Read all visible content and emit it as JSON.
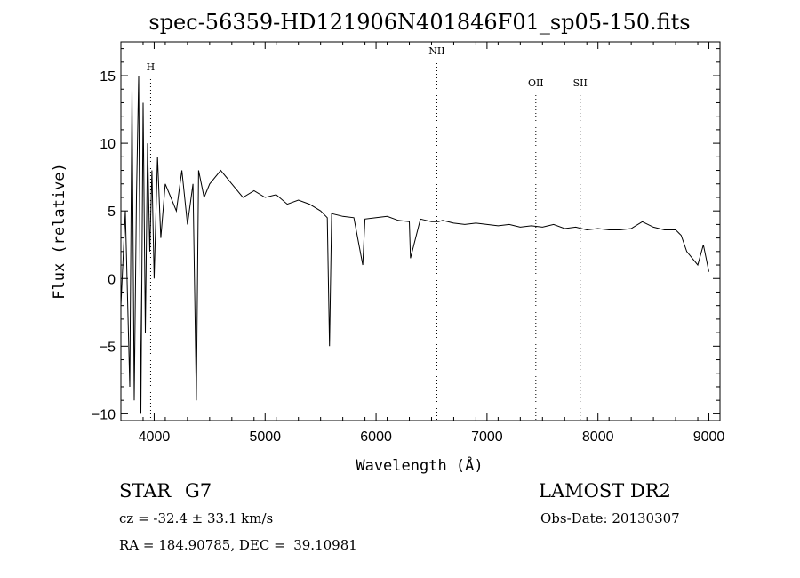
{
  "chart_data": {
    "type": "line",
    "title": "spec-56359-HD121906N401846F01_sp05-150.fits",
    "xlabel": "Wavelength (Å)",
    "ylabel": "Flux (relative)",
    "xlim": [
      3700,
      9100
    ],
    "ylim": [
      -10.5,
      17.5
    ],
    "xticks": [
      4000,
      5000,
      6000,
      7000,
      8000,
      9000
    ],
    "yticks": [
      -10,
      -5,
      0,
      5,
      10,
      15
    ],
    "grid": false,
    "line_color": "#000000",
    "series": [
      {
        "x": [
          3700,
          3740,
          3780,
          3800,
          3820,
          3840,
          3860,
          3880,
          3900,
          3920,
          3940,
          3960,
          3980,
          4000,
          4030,
          4060,
          4100,
          4150,
          4200,
          4250,
          4300,
          4350,
          4380,
          4400,
          4450,
          4500,
          4600,
          4700,
          4800,
          4900,
          5000,
          5100,
          5200,
          5300,
          5400,
          5500,
          5560,
          5580,
          5600,
          5700,
          5800,
          5880,
          5900,
          6000,
          6100,
          6200,
          6300,
          6310,
          6400,
          6500,
          6563,
          6600,
          6700,
          6800,
          6900,
          7000,
          7100,
          7200,
          7300,
          7400,
          7500,
          7600,
          7700,
          7800,
          7900,
          8000,
          8100,
          8200,
          8300,
          8400,
          8500,
          8600,
          8700,
          8750,
          8800,
          8850,
          8900,
          8950,
          9000
        ],
        "y": [
          -2,
          5,
          -8,
          14,
          -9,
          6,
          15,
          -10,
          13,
          -4,
          10,
          2,
          8,
          0,
          9,
          3,
          7,
          6,
          5,
          8,
          4,
          7,
          -9,
          8,
          6,
          7,
          8,
          7,
          6,
          6.5,
          6,
          6.2,
          5.5,
          5.8,
          5.5,
          5,
          4.5,
          -5,
          4.8,
          4.6,
          4.5,
          1,
          4.4,
          4.5,
          4.6,
          4.3,
          4.2,
          1.5,
          4.4,
          4.2,
          4.2,
          4.3,
          4.1,
          4.0,
          4.1,
          4.0,
          3.9,
          4.0,
          3.8,
          3.9,
          3.8,
          4.0,
          3.7,
          3.8,
          3.6,
          3.7,
          3.6,
          3.6,
          3.7,
          4.2,
          3.8,
          3.6,
          3.6,
          3.2,
          2.0,
          1.5,
          1.0,
          2.5,
          0.5
        ]
      }
    ],
    "lines": [
      {
        "label": "H",
        "x": 3968
      },
      {
        "label": "NII",
        "x": 6548
      },
      {
        "label": "OII",
        "x": 7440
      },
      {
        "label": "SII",
        "x": 7840
      }
    ]
  },
  "info": {
    "object_class": "STAR",
    "subclass": "G7",
    "survey": "LAMOST DR2",
    "redshift": "cz = -32.4 ± 33.1 km/s",
    "obs_date": "Obs-Date: 20130307",
    "coords": "RA = 184.90785, DEC =  39.10981"
  }
}
